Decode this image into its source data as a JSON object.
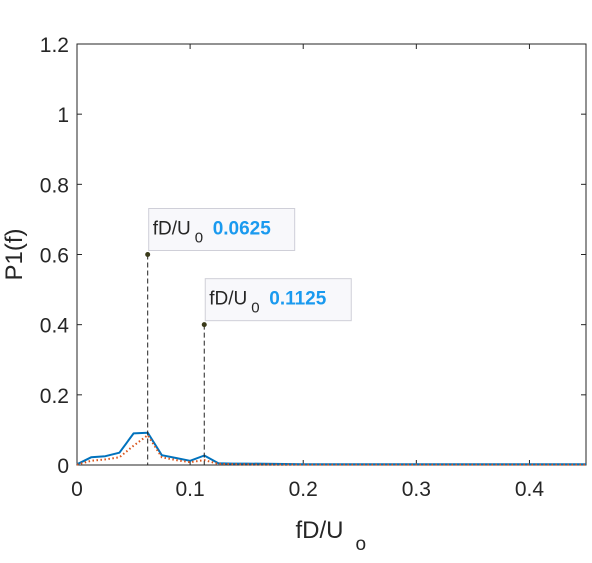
{
  "chart_data": {
    "type": "line",
    "xlabel_main": "fD/U",
    "xlabel_sub": "o",
    "ylabel": "P1(f)",
    "xlim": [
      0,
      0.45
    ],
    "ylim": [
      0,
      1.2
    ],
    "xticks": [
      0,
      0.1,
      0.2,
      0.3,
      0.4
    ],
    "xtick_labels": [
      "0",
      "0.1",
      "0.2",
      "0.3",
      "0.4"
    ],
    "yticks": [
      0,
      0.2,
      0.4,
      0.6,
      0.8,
      1,
      1.2
    ],
    "ytick_labels": [
      "0",
      "0.2",
      "0.4",
      "0.6",
      "0.8",
      "1",
      "1.2"
    ],
    "grid": false,
    "legend": "none",
    "series": [
      {
        "color": "#0072BD",
        "style": "solid",
        "x": [
          0,
          0.0125,
          0.025,
          0.0375,
          0.05,
          0.0625,
          0.075,
          0.0875,
          0.1,
          0.1125,
          0.125,
          0.1375,
          0.15,
          0.175,
          0.2,
          0.25,
          0.3,
          0.35,
          0.4,
          0.45
        ],
        "y": [
          0.002,
          0.022,
          0.025,
          0.035,
          0.09,
          0.092,
          0.028,
          0.02,
          0.012,
          0.027,
          0.005,
          0.004,
          0.004,
          0.003,
          0.002,
          0.002,
          0.002,
          0.002,
          0.002,
          0.002
        ]
      },
      {
        "color": "#D95319",
        "style": "dotted",
        "x": [
          0,
          0.0125,
          0.025,
          0.0375,
          0.05,
          0.0625,
          0.075,
          0.0875,
          0.1,
          0.1125,
          0.125,
          0.15,
          0.2,
          0.25,
          0.3,
          0.35,
          0.4,
          0.45
        ],
        "y": [
          0.001,
          0.012,
          0.016,
          0.022,
          0.055,
          0.085,
          0.022,
          0.014,
          0.008,
          0.014,
          0.003,
          0.002,
          0.001,
          0.001,
          0.001,
          0.001,
          0.001,
          0.001
        ]
      }
    ],
    "annotations": [
      {
        "x": 0.0625,
        "y": 0.6,
        "label_main": "fD/U",
        "label_sub": "0",
        "value": "0.0625"
      },
      {
        "x": 0.1125,
        "y": 0.4,
        "label_main": "fD/U",
        "label_sub": "0",
        "value": "0.1125"
      }
    ],
    "value_color": "#1A9AEF"
  }
}
